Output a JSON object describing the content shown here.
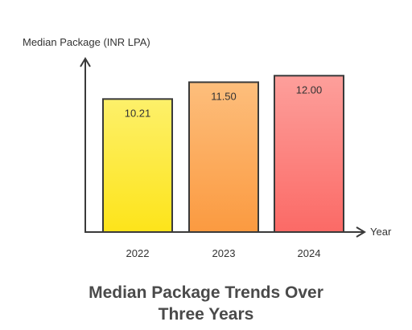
{
  "chart_data": {
    "type": "bar",
    "title_lines": [
      "Median Package Trends Over",
      "Three Years"
    ],
    "ylabel": "Median Package (INR LPA)",
    "xlabel": "Year",
    "categories": [
      "2022",
      "2023",
      "2024"
    ],
    "values": [
      10.21,
      11.5,
      12.0
    ],
    "value_labels": [
      "10.21",
      "11.50",
      "12.00"
    ],
    "ylim": [
      0,
      13.25
    ],
    "grid": false,
    "legend": "none",
    "bar_gradients": [
      {
        "top": "#fdf06a",
        "bottom": "#fde41a"
      },
      {
        "top": "#fdbe7c",
        "bottom": "#fb9a40"
      },
      {
        "top": "#fd9f9b",
        "bottom": "#fb6a66"
      }
    ]
  }
}
